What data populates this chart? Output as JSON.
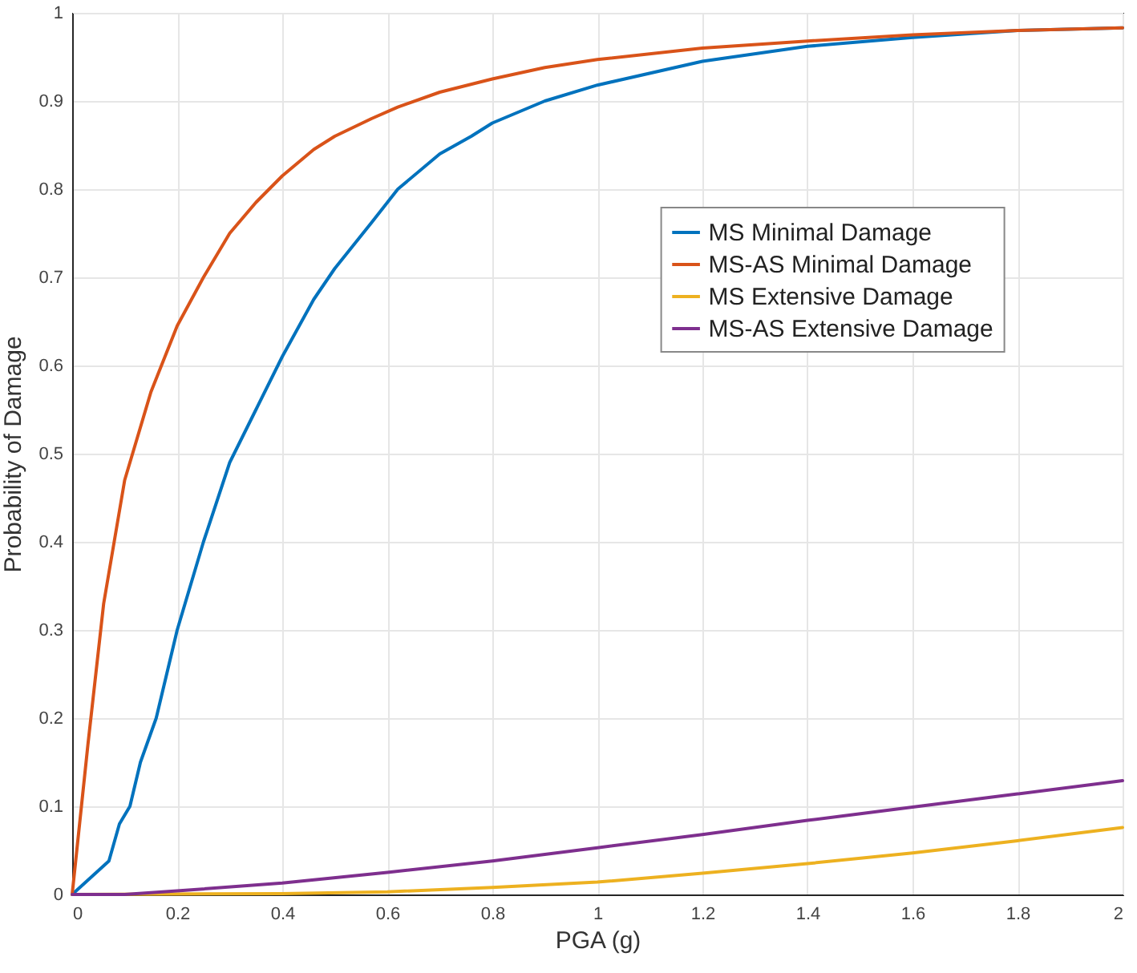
{
  "chart_data": {
    "type": "line",
    "xlabel": "PGA (g)",
    "ylabel": "Probability of Damage",
    "xlim": [
      0,
      2
    ],
    "ylim": [
      0,
      1
    ],
    "xticks": [
      0,
      0.2,
      0.4,
      0.6,
      0.8,
      1,
      1.2,
      1.4,
      1.6,
      1.8,
      2
    ],
    "yticks": [
      0,
      0.1,
      0.2,
      0.3,
      0.4,
      0.5,
      0.6,
      0.7,
      0.8,
      0.9,
      1
    ],
    "grid": true,
    "legend": "right",
    "marker": "none",
    "line_style": "solid",
    "series": [
      {
        "name": "MS Minimal Damage",
        "color": "#0072bd",
        "x": [
          0,
          0.07,
          0.09,
          0.11,
          0.13,
          0.16,
          0.2,
          0.25,
          0.3,
          0.35,
          0.4,
          0.46,
          0.5,
          0.57,
          0.62,
          0.7,
          0.76,
          0.8,
          0.9,
          1,
          1.2,
          1.4,
          1.6,
          1.8,
          2
        ],
        "values": [
          0,
          0.038,
          0.08,
          0.1,
          0.15,
          0.2,
          0.3,
          0.4,
          0.49,
          0.55,
          0.61,
          0.675,
          0.71,
          0.762,
          0.8,
          0.84,
          0.86,
          0.875,
          0.9,
          0.918,
          0.945,
          0.962,
          0.972,
          0.98,
          0.983
        ]
      },
      {
        "name": "MS-AS Minimal Damage",
        "color": "#d95319",
        "x": [
          0,
          0.03,
          0.06,
          0.1,
          0.15,
          0.2,
          0.25,
          0.3,
          0.35,
          0.4,
          0.46,
          0.5,
          0.57,
          0.62,
          0.7,
          0.8,
          0.9,
          1,
          1.2,
          1.4,
          1.6,
          1.8,
          2
        ],
        "values": [
          0,
          0.17,
          0.33,
          0.47,
          0.57,
          0.645,
          0.7,
          0.75,
          0.785,
          0.815,
          0.845,
          0.86,
          0.88,
          0.893,
          0.91,
          0.925,
          0.938,
          0.947,
          0.96,
          0.968,
          0.975,
          0.98,
          0.983
        ]
      },
      {
        "name": "MS Extensive Damage",
        "color": "#edb120",
        "x": [
          0,
          0.4,
          0.6,
          0.8,
          1,
          1.2,
          1.4,
          1.6,
          1.8,
          2
        ],
        "values": [
          0,
          0.001,
          0.003,
          0.008,
          0.014,
          0.024,
          0.035,
          0.047,
          0.061,
          0.076
        ]
      },
      {
        "name": "MS-AS Extensive Damage",
        "color": "#7e2f8e",
        "x": [
          0,
          0.1,
          0.2,
          0.4,
          0.6,
          0.8,
          1,
          1.2,
          1.4,
          1.6,
          1.8,
          2
        ],
        "values": [
          0,
          0,
          0.004,
          0.013,
          0.025,
          0.038,
          0.053,
          0.068,
          0.084,
          0.099,
          0.114,
          0.129
        ]
      }
    ]
  }
}
